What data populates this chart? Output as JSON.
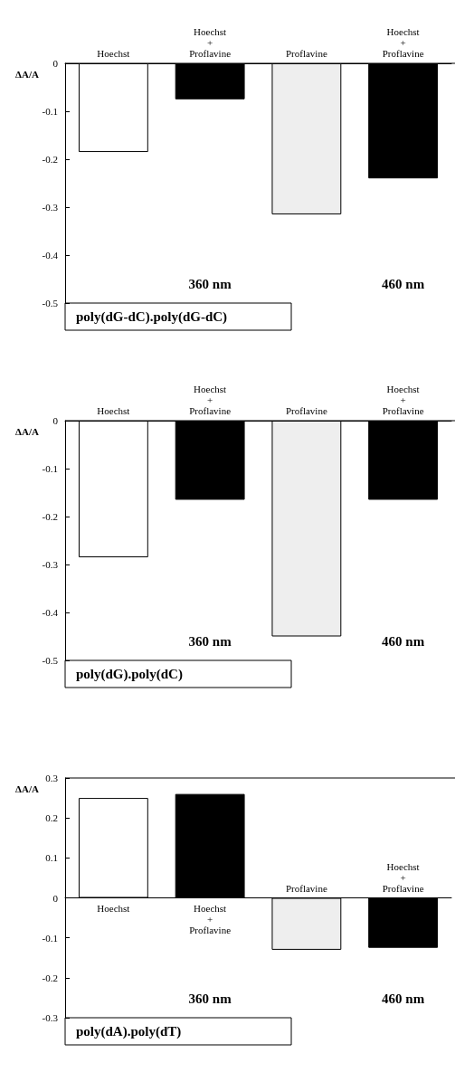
{
  "chart_data": [
    {
      "type": "bar",
      "categories": [
        "Hoechst",
        "Hoechst + Proflavine",
        "Proflavine",
        "Hoechst + Proflavine"
      ],
      "values": [
        -0.185,
        -0.075,
        -0.315,
        -0.24
      ],
      "colors": [
        "#ffffff",
        "#000000",
        "#eeeeee",
        "#000000"
      ],
      "ylabel": "ΔA/A",
      "ylim": [
        -0.5,
        0
      ],
      "yticks": [
        -0.5,
        -0.4,
        -0.3,
        -0.2,
        -0.1,
        0
      ],
      "xlabel": "poly(dG-dC).poly(dG-dC)",
      "annotations": [
        "360 nm",
        "460 nm"
      ]
    },
    {
      "type": "bar",
      "categories": [
        "Hoechst",
        "Hoechst + Proflavine",
        "Proflavine",
        "Hoechst + Proflavine"
      ],
      "values": [
        -0.285,
        -0.165,
        -0.45,
        -0.165
      ],
      "colors": [
        "#ffffff",
        "#000000",
        "#eeeeee",
        "#000000"
      ],
      "ylabel": "ΔA/A",
      "ylim": [
        -0.5,
        0
      ],
      "yticks": [
        -0.5,
        -0.4,
        -0.3,
        -0.2,
        -0.1,
        0
      ],
      "xlabel": "poly(dG).poly(dC)",
      "annotations": [
        "360 nm",
        "460 nm"
      ]
    },
    {
      "type": "bar",
      "categories": [
        "Hoechst",
        "Hoechst + Proflavine",
        "Proflavine",
        "Hoechst + Proflavine"
      ],
      "values": [
        0.25,
        0.26,
        -0.13,
        -0.125
      ],
      "colors": [
        "#ffffff",
        "#000000",
        "#eeeeee",
        "#000000"
      ],
      "ylabel": "ΔA/A",
      "ylim": [
        -0.3,
        0.3
      ],
      "yticks": [
        -0.3,
        -0.2,
        -0.1,
        0,
        0.1,
        0.2,
        0.3
      ],
      "xlabel": "poly(dA).poly(dT)",
      "annotations": [
        "360 nm",
        "460 nm"
      ]
    }
  ]
}
